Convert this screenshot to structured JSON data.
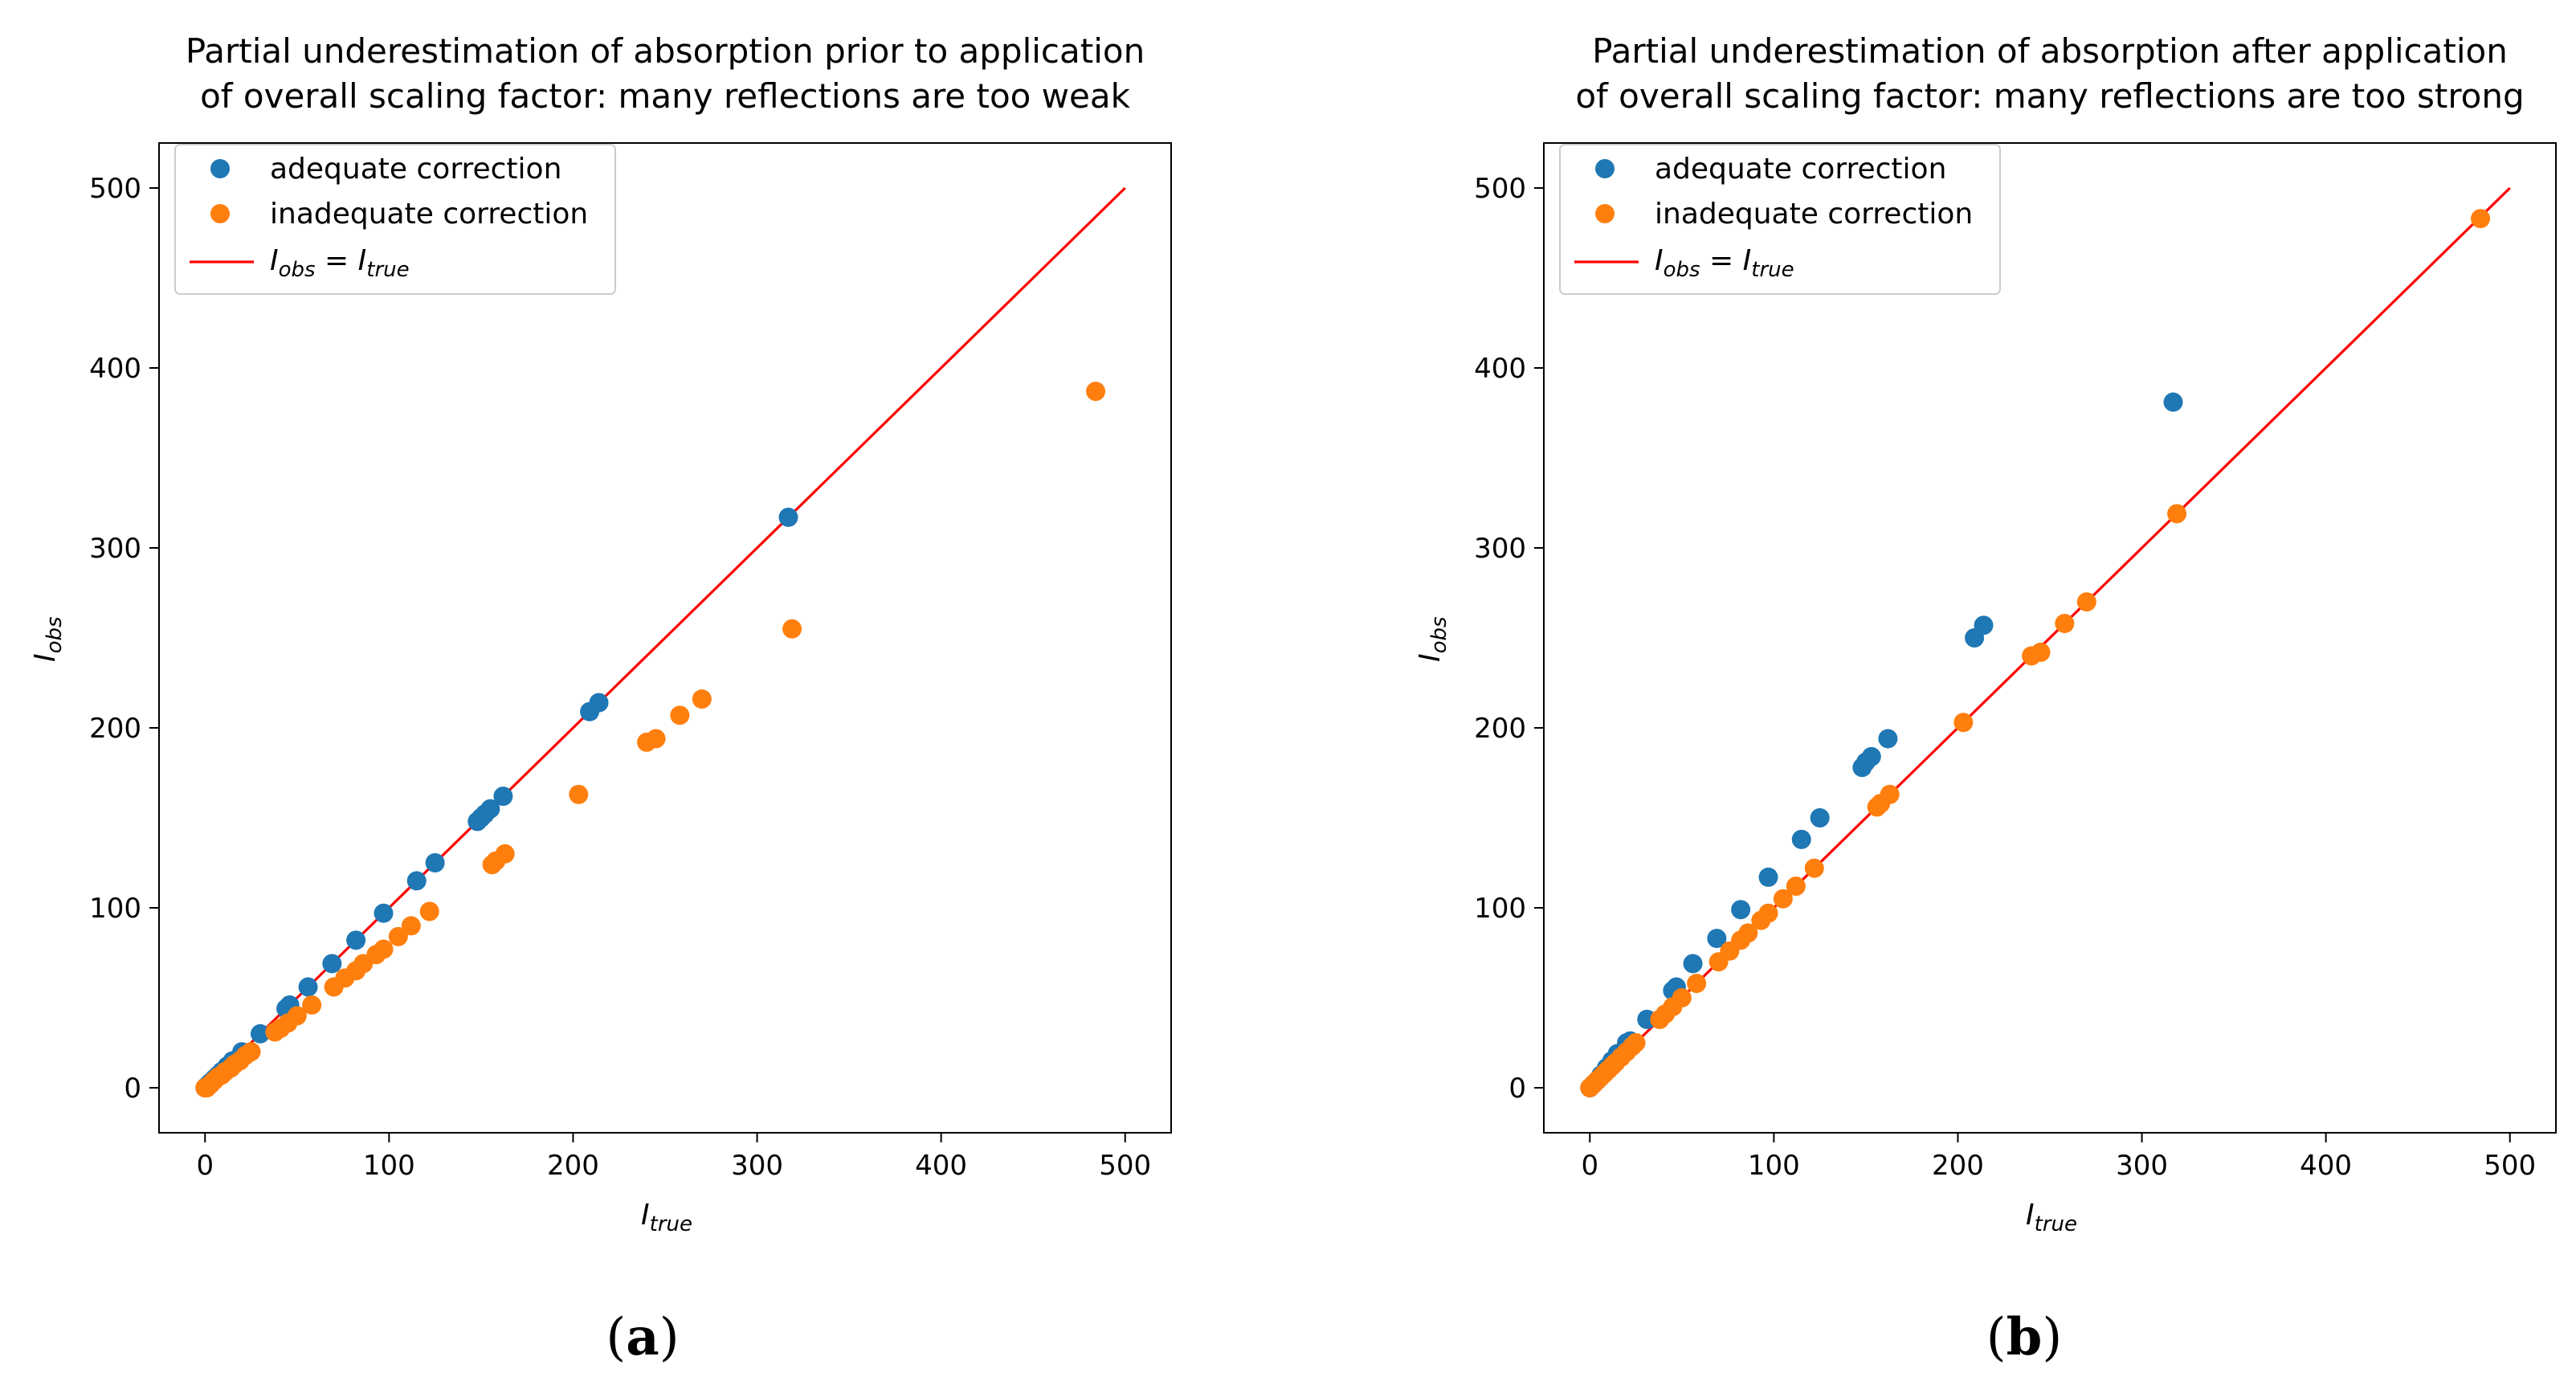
{
  "colors": {
    "adequate": "#1f77b4",
    "inadequate": "#ff7f0e",
    "ideal_line": "#ff0000"
  },
  "legend": {
    "adequate": "adequate correction",
    "inadequate": "inadequate correction",
    "line_lhs_main": "I",
    "line_lhs_sub": "obs",
    "line_eq": " = ",
    "line_rhs_main": "I",
    "line_rhs_sub": "true"
  },
  "axis_labels": {
    "x_main": "I",
    "x_sub": "true",
    "y_main": "I",
    "y_sub": "obs"
  },
  "chart_data": [
    {
      "type": "scatter",
      "title_line1": "Partial underestimation of absorption prior to application",
      "title_line2": "of overall scaling factor: many reflections are too weak",
      "caption_open": "(",
      "caption_letter": "a",
      "caption_close": ")",
      "xlim": [
        -25,
        525
      ],
      "ylim": [
        -25,
        525
      ],
      "xticks": [
        0,
        100,
        200,
        300,
        400,
        500
      ],
      "yticks": [
        0,
        100,
        200,
        300,
        400,
        500
      ],
      "line": {
        "x": [
          0,
          500
        ],
        "y": [
          0,
          500
        ]
      },
      "series": [
        {
          "name": "adequate correction",
          "points": [
            [
              0,
              0
            ],
            [
              1,
              1
            ],
            [
              2,
              2
            ],
            [
              3,
              3
            ],
            [
              5,
              5
            ],
            [
              7,
              7
            ],
            [
              9,
              9
            ],
            [
              12,
              12
            ],
            [
              15,
              15
            ],
            [
              20,
              20
            ],
            [
              30,
              30
            ],
            [
              44,
              44
            ],
            [
              46,
              46
            ],
            [
              56,
              56
            ],
            [
              69,
              69
            ],
            [
              82,
              82
            ],
            [
              97,
              97
            ],
            [
              115,
              115
            ],
            [
              125,
              125
            ],
            [
              148,
              148
            ],
            [
              150,
              150
            ],
            [
              152,
              152
            ],
            [
              155,
              155
            ],
            [
              162,
              162
            ],
            [
              209,
              209
            ],
            [
              214,
              214
            ],
            [
              317,
              317
            ]
          ]
        },
        {
          "name": "inadequate correction",
          "points": [
            [
              0,
              0
            ],
            [
              1,
              0
            ],
            [
              3,
              2
            ],
            [
              5,
              4
            ],
            [
              7,
              6
            ],
            [
              9,
              7
            ],
            [
              11,
              9
            ],
            [
              14,
              11
            ],
            [
              16,
              13
            ],
            [
              19,
              15
            ],
            [
              22,
              18
            ],
            [
              25,
              20
            ],
            [
              38,
              31
            ],
            [
              41,
              33
            ],
            [
              45,
              36
            ],
            [
              50,
              40
            ],
            [
              58,
              46
            ],
            [
              70,
              56
            ],
            [
              76,
              61
            ],
            [
              82,
              65
            ],
            [
              86,
              69
            ],
            [
              93,
              74
            ],
            [
              97,
              77
            ],
            [
              105,
              84
            ],
            [
              112,
              90
            ],
            [
              122,
              98
            ],
            [
              156,
              124
            ],
            [
              158,
              126
            ],
            [
              163,
              130
            ],
            [
              203,
              163
            ],
            [
              240,
              192
            ],
            [
              245,
              194
            ],
            [
              258,
              207
            ],
            [
              270,
              216
            ],
            [
              319,
              255
            ],
            [
              484,
              387
            ]
          ]
        }
      ]
    },
    {
      "type": "scatter",
      "title_line1": "Partial underestimation of absorption after application",
      "title_line2": "of overall scaling factor: many reflections are too strong",
      "caption_open": "(",
      "caption_letter": "b",
      "caption_close": ")",
      "xlim": [
        -25,
        525
      ],
      "ylim": [
        -25,
        525
      ],
      "xticks": [
        0,
        100,
        200,
        300,
        400,
        500
      ],
      "yticks": [
        0,
        100,
        200,
        300,
        400,
        500
      ],
      "line": {
        "x": [
          0,
          500
        ],
        "y": [
          0,
          500
        ]
      },
      "series": [
        {
          "name": "adequate correction",
          "points": [
            [
              0,
              0
            ],
            [
              2,
              2
            ],
            [
              4,
              4
            ],
            [
              6,
              7
            ],
            [
              9,
              11
            ],
            [
              12,
              15
            ],
            [
              15,
              19
            ],
            [
              20,
              25
            ],
            [
              22,
              26
            ],
            [
              31,
              38
            ],
            [
              45,
              54
            ],
            [
              47,
              56
            ],
            [
              56,
              69
            ],
            [
              69,
              83
            ],
            [
              82,
              99
            ],
            [
              97,
              117
            ],
            [
              115,
              138
            ],
            [
              125,
              150
            ],
            [
              148,
              178
            ],
            [
              150,
              181
            ],
            [
              153,
              184
            ],
            [
              162,
              194
            ],
            [
              209,
              250
            ],
            [
              214,
              257
            ],
            [
              317,
              381
            ]
          ]
        },
        {
          "name": "inadequate correction",
          "points": [
            [
              0,
              0
            ],
            [
              2,
              2
            ],
            [
              4,
              4
            ],
            [
              6,
              6
            ],
            [
              8,
              8
            ],
            [
              10,
              10
            ],
            [
              12,
              12
            ],
            [
              14,
              14
            ],
            [
              17,
              17
            ],
            [
              20,
              20
            ],
            [
              23,
              23
            ],
            [
              25,
              25
            ],
            [
              38,
              38
            ],
            [
              41,
              41
            ],
            [
              45,
              45
            ],
            [
              50,
              50
            ],
            [
              58,
              58
            ],
            [
              70,
              70
            ],
            [
              76,
              76
            ],
            [
              82,
              82
            ],
            [
              86,
              86
            ],
            [
              93,
              93
            ],
            [
              97,
              97
            ],
            [
              105,
              105
            ],
            [
              112,
              112
            ],
            [
              122,
              122
            ],
            [
              156,
              156
            ],
            [
              158,
              158
            ],
            [
              163,
              163
            ],
            [
              203,
              203
            ],
            [
              240,
              240
            ],
            [
              245,
              242
            ],
            [
              258,
              258
            ],
            [
              270,
              270
            ],
            [
              319,
              319
            ],
            [
              484,
              483
            ]
          ]
        }
      ]
    }
  ]
}
